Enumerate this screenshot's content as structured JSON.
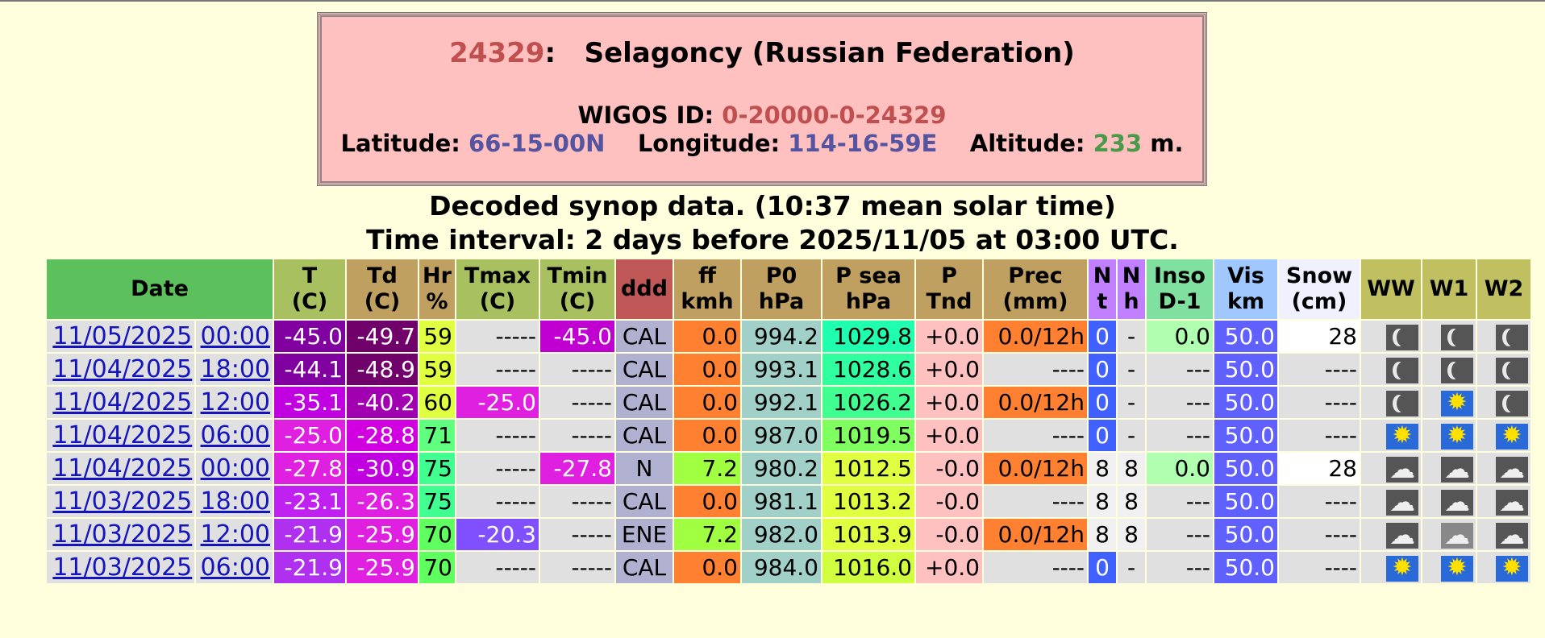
{
  "station": {
    "number": "24329",
    "separator": ":",
    "name": "Selagoncy (Russian Federation)",
    "wigos_label": "WIGOS ID:",
    "wigos_id": "0-20000-0-24329",
    "lat_label": "Latitude:",
    "latitude": "66-15-00N",
    "lon_label": "Longitude:",
    "longitude": "114-16-59E",
    "alt_label": "Altitude:",
    "altitude": "233",
    "alt_unit": "m."
  },
  "heading": {
    "line1": "Decoded synop data. (10:37 mean solar time)",
    "line2": "Time interval: 2 days before 2025/11/05 at 03:00 UTC."
  },
  "columns": [
    {
      "l1": "Date",
      "l2": ""
    },
    {
      "l1": "T",
      "l2": "(C)"
    },
    {
      "l1": "Td",
      "l2": "(C)"
    },
    {
      "l1": "Hr",
      "l2": "%"
    },
    {
      "l1": "Tmax",
      "l2": "(C)"
    },
    {
      "l1": "Tmin",
      "l2": "(C)"
    },
    {
      "l1": "ddd",
      "l2": ""
    },
    {
      "l1": "ff",
      "l2": "kmh"
    },
    {
      "l1": "P0",
      "l2": "hPa"
    },
    {
      "l1": "P sea",
      "l2": "hPa"
    },
    {
      "l1": "P",
      "l2": "Tnd"
    },
    {
      "l1": "Prec",
      "l2": "(mm)"
    },
    {
      "l1": "N",
      "l2": "t"
    },
    {
      "l1": "N",
      "l2": "h"
    },
    {
      "l1": "Inso",
      "l2": "D-1"
    },
    {
      "l1": "Vis",
      "l2": "km"
    },
    {
      "l1": "Snow",
      "l2": "(cm)"
    },
    {
      "l1": "WW",
      "l2": ""
    },
    {
      "l1": "W1",
      "l2": ""
    },
    {
      "l1": "W2",
      "l2": ""
    }
  ],
  "header_colors": [
    "#5cc05c",
    "#a8c060",
    "#c0a060",
    "#c0a060",
    "#a8c060",
    "#a8c060",
    "#c05858",
    "#c0a060",
    "#c0a060",
    "#c0a060",
    "#c0a060",
    "#c0a060",
    "#c080ff",
    "#c080ff",
    "#80e0a0",
    "#a0c8ff",
    "#f0f0ff",
    "#c0c060",
    "#c0c060",
    "#c0c060"
  ],
  "rows": [
    {
      "date": "11/05/2025",
      "time": "00:00",
      "T": "-45.0",
      "Td": "-49.7",
      "Hr": "59",
      "Tmax": "-----",
      "Tmin": "-45.0",
      "ddd": "CAL",
      "ff": "0.0",
      "P0": "994.2",
      "Psea": "1029.8",
      "Ptnd": "+0.0",
      "Prec": "0.0/12h",
      "Nt": "0",
      "Nh": "-",
      "Inso": "0.0",
      "Vis": "50.0",
      "Snow": "28",
      "WW": "moon",
      "W1": "moon",
      "W2": "moon",
      "c": {
        "T": "#8000a0",
        "Td": "#70006a",
        "Hr": "#e0ff40",
        "Tmax": "#e0e0e0",
        "Tmin": "#c000d0",
        "ddd": "#b0b0d0",
        "ff": "#ff8030",
        "P0": "#a0d0c8",
        "Psea": "#20ffb0",
        "Ptnd": "#ffc0c0",
        "Prec": "#ff8030",
        "Nt": "#4060ff",
        "Nh": "#e0e0e0",
        "Inso": "#b0ffb0",
        "Vis": "#6060ff",
        "Snow": "#ffffff"
      }
    },
    {
      "date": "11/04/2025",
      "time": "18:00",
      "T": "-44.1",
      "Td": "-48.9",
      "Hr": "59",
      "Tmax": "-----",
      "Tmin": "-----",
      "ddd": "CAL",
      "ff": "0.0",
      "P0": "993.1",
      "Psea": "1028.6",
      "Ptnd": "+0.0",
      "Prec": "----",
      "Nt": "0",
      "Nh": "-",
      "Inso": "---",
      "Vis": "50.0",
      "Snow": "----",
      "WW": "moon",
      "W1": "moon",
      "W2": "moon",
      "c": {
        "T": "#8000a0",
        "Td": "#70006a",
        "Hr": "#e0ff40",
        "Tmax": "#e0e0e0",
        "Tmin": "#e0e0e0",
        "ddd": "#b0b0d0",
        "ff": "#ff8030",
        "P0": "#a0d0c8",
        "Psea": "#30ffa0",
        "Ptnd": "#ffc0c0",
        "Prec": "#e0e0e0",
        "Nt": "#4060ff",
        "Nh": "#e0e0e0",
        "Inso": "#e0e0e0",
        "Vis": "#6060ff",
        "Snow": "#e0e0e0"
      }
    },
    {
      "date": "11/04/2025",
      "time": "12:00",
      "T": "-35.1",
      "Td": "-40.2",
      "Hr": "60",
      "Tmax": "-25.0",
      "Tmin": "-----",
      "ddd": "CAL",
      "ff": "0.0",
      "P0": "992.1",
      "Psea": "1026.2",
      "Ptnd": "+0.0",
      "Prec": "0.0/12h",
      "Nt": "0",
      "Nh": "-",
      "Inso": "---",
      "Vis": "50.0",
      "Snow": "----",
      "WW": "moon",
      "W1": "sun",
      "W2": "moon",
      "c": {
        "T": "#c000e0",
        "Td": "#a000b0",
        "Hr": "#e0ff40",
        "Tmax": "#e020e0",
        "Tmin": "#e0e0e0",
        "ddd": "#b0b0d0",
        "ff": "#ff8030",
        "P0": "#a0d0c8",
        "Psea": "#40ff90",
        "Ptnd": "#ffc0c0",
        "Prec": "#ff8030",
        "Nt": "#4060ff",
        "Nh": "#e0e0e0",
        "Inso": "#e0e0e0",
        "Vis": "#6060ff",
        "Snow": "#e0e0e0"
      }
    },
    {
      "date": "11/04/2025",
      "time": "06:00",
      "T": "-25.0",
      "Td": "-28.8",
      "Hr": "71",
      "Tmax": "-----",
      "Tmin": "-----",
      "ddd": "CAL",
      "ff": "0.0",
      "P0": "987.0",
      "Psea": "1019.5",
      "Ptnd": "+0.0",
      "Prec": "----",
      "Nt": "0",
      "Nh": "-",
      "Inso": "---",
      "Vis": "50.0",
      "Snow": "----",
      "WW": "sun",
      "W1": "sun",
      "W2": "sun",
      "c": {
        "T": "#e020e0",
        "Td": "#d000e0",
        "Hr": "#60ff80",
        "Tmax": "#e0e0e0",
        "Tmin": "#e0e0e0",
        "ddd": "#b0b0d0",
        "ff": "#ff8030",
        "P0": "#a0d0c8",
        "Psea": "#80ff60",
        "Ptnd": "#ffc0c0",
        "Prec": "#e0e0e0",
        "Nt": "#4060ff",
        "Nh": "#e0e0e0",
        "Inso": "#e0e0e0",
        "Vis": "#6060ff",
        "Snow": "#e0e0e0"
      }
    },
    {
      "date": "11/04/2025",
      "time": "00:00",
      "T": "-27.8",
      "Td": "-30.9",
      "Hr": "75",
      "Tmax": "-----",
      "Tmin": "-27.8",
      "ddd": "N",
      "ff": "7.2",
      "P0": "980.2",
      "Psea": "1012.5",
      "Ptnd": "-0.0",
      "Prec": "0.0/12h",
      "Nt": "8",
      "Nh": "8",
      "Inso": "0.0",
      "Vis": "50.0",
      "Snow": "28",
      "WW": "cloud",
      "W1": "cloud",
      "W2": "cloud",
      "c": {
        "T": "#e020e0",
        "Td": "#c000e0",
        "Hr": "#40ff90",
        "Tmax": "#e0e0e0",
        "Tmin": "#e020e0",
        "ddd": "#b0b0d0",
        "ff": "#a0ff40",
        "P0": "#a0d0c8",
        "Psea": "#e0ff40",
        "Ptnd": "#ffc0c0",
        "Prec": "#ff8030",
        "Nt": "#f0f0f0",
        "Nh": "#f0f0f0",
        "Inso": "#b0ffb0",
        "Vis": "#6060ff",
        "Snow": "#ffffff"
      }
    },
    {
      "date": "11/03/2025",
      "time": "18:00",
      "T": "-23.1",
      "Td": "-26.3",
      "Hr": "75",
      "Tmax": "-----",
      "Tmin": "-----",
      "ddd": "CAL",
      "ff": "0.0",
      "P0": "981.1",
      "Psea": "1013.2",
      "Ptnd": "-0.0",
      "Prec": "----",
      "Nt": "8",
      "Nh": "8",
      "Inso": "---",
      "Vis": "50.0",
      "Snow": "----",
      "WW": "cloud",
      "W1": "cloud",
      "W2": "cloud",
      "c": {
        "T": "#c020f0",
        "Td": "#e020e0",
        "Hr": "#40ff90",
        "Tmax": "#e0e0e0",
        "Tmin": "#e0e0e0",
        "ddd": "#b0b0d0",
        "ff": "#ff8030",
        "P0": "#a0d0c8",
        "Psea": "#e0ff40",
        "Ptnd": "#ffc0c0",
        "Prec": "#e0e0e0",
        "Nt": "#f0f0f0",
        "Nh": "#f0f0f0",
        "Inso": "#e0e0e0",
        "Vis": "#6060ff",
        "Snow": "#e0e0e0"
      }
    },
    {
      "date": "11/03/2025",
      "time": "12:00",
      "T": "-21.9",
      "Td": "-25.9",
      "Hr": "70",
      "Tmax": "-20.3",
      "Tmin": "-----",
      "ddd": "ENE",
      "ff": "7.2",
      "P0": "982.0",
      "Psea": "1013.9",
      "Ptnd": "-0.0",
      "Prec": "0.0/12h",
      "Nt": "8",
      "Nh": "8",
      "Inso": "---",
      "Vis": "50.0",
      "Snow": "----",
      "WW": "cloud",
      "W1": "cloud-light",
      "W2": "cloud",
      "c": {
        "T": "#b030f0",
        "Td": "#e020e0",
        "Hr": "#60ff60",
        "Tmax": "#8050ff",
        "Tmin": "#e0e0e0",
        "ddd": "#b0b0d0",
        "ff": "#a0ff40",
        "P0": "#a0d0c8",
        "Psea": "#e0ff40",
        "Ptnd": "#ffc0c0",
        "Prec": "#ff8030",
        "Nt": "#f0f0f0",
        "Nh": "#f0f0f0",
        "Inso": "#e0e0e0",
        "Vis": "#6060ff",
        "Snow": "#e0e0e0"
      }
    },
    {
      "date": "11/03/2025",
      "time": "06:00",
      "T": "-21.9",
      "Td": "-25.9",
      "Hr": "70",
      "Tmax": "-----",
      "Tmin": "-----",
      "ddd": "CAL",
      "ff": "0.0",
      "P0": "984.0",
      "Psea": "1016.0",
      "Ptnd": "+0.0",
      "Prec": "----",
      "Nt": "0",
      "Nh": "-",
      "Inso": "---",
      "Vis": "50.0",
      "Snow": "----",
      "WW": "sun",
      "W1": "sun",
      "W2": "sun",
      "c": {
        "T": "#b030f0",
        "Td": "#e020e0",
        "Hr": "#60ff60",
        "Tmax": "#e0e0e0",
        "Tmin": "#e0e0e0",
        "ddd": "#b0b0d0",
        "ff": "#ff8030",
        "P0": "#a0d0c8",
        "Psea": "#d0ff40",
        "Ptnd": "#ffc0c0",
        "Prec": "#e0e0e0",
        "Nt": "#4060ff",
        "Nh": "#e0e0e0",
        "Inso": "#e0e0e0",
        "Vis": "#6060ff",
        "Snow": "#e0e0e0"
      }
    }
  ]
}
